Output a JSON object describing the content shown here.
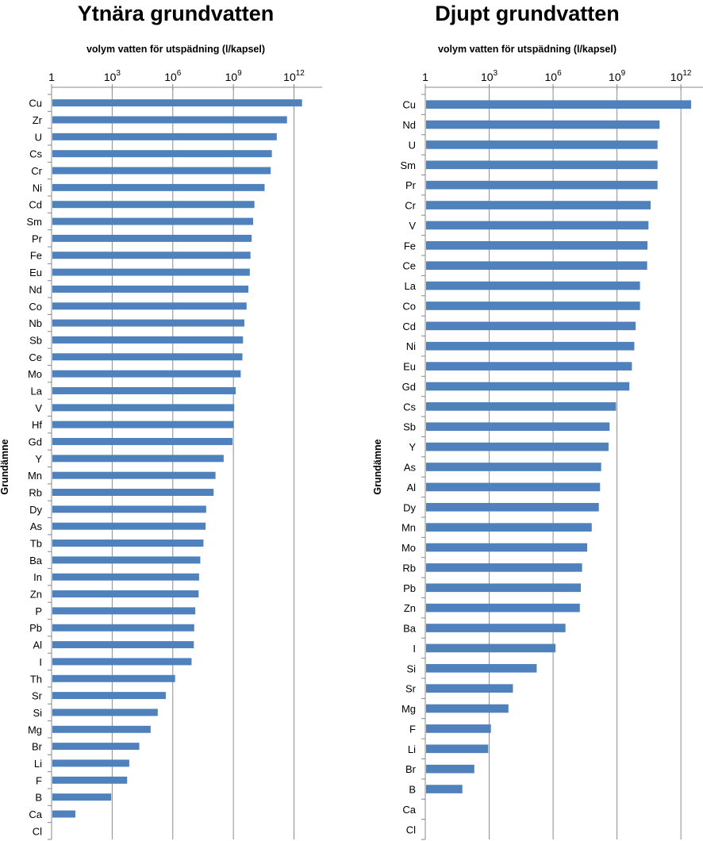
{
  "chart_data": [
    {
      "type": "bar",
      "orientation": "horizontal",
      "title": "Ytnära grundvatten",
      "xlabel": "volym vatten för utspädning (l/kapsel)",
      "ylabel": "Grundämne",
      "xscale": "log",
      "xlim": [
        1,
        10000000000000.0
      ],
      "xticks": [
        "1",
        "10^3",
        "10^6",
        "10^9",
        "10^12"
      ],
      "xaxis_position": "top",
      "grid": "vertical",
      "bar_color": "#4F81BD",
      "categories": [
        "Cu",
        "Zr",
        "U",
        "Cs",
        "Cr",
        "Ni",
        "Cd",
        "Sm",
        "Pr",
        "Fe",
        "Eu",
        "Nd",
        "Co",
        "Nb",
        "Sb",
        "Ce",
        "Mo",
        "La",
        "V",
        "Hf",
        "Gd",
        "Y",
        "Mn",
        "Rb",
        "Dy",
        "As",
        "Tb",
        "Ba",
        "In",
        "Zn",
        "P",
        "Pb",
        "Al",
        "I",
        "Th",
        "Sr",
        "Si",
        "Mg",
        "Br",
        "Li",
        "F",
        "B",
        "Ca",
        "Cl"
      ],
      "values": [
        2500000000000.0,
        450000000000.0,
        140000000000.0,
        80000000000.0,
        70000000000.0,
        35000000000.0,
        11000000000.0,
        9500000000.0,
        8000000000.0,
        7000000000.0,
        6500000000.0,
        5500000000.0,
        4500000000.0,
        3500000000.0,
        3000000000.0,
        2800000000.0,
        2300000000.0,
        1300000000.0,
        1100000000.0,
        1050000000.0,
        900000000.0,
        330000000.0,
        130000000.0,
        105000000.0,
        45000000.0,
        42000000.0,
        33000000.0,
        23000000.0,
        20000000.0,
        19000000.0,
        13000000.0,
        11500000.0,
        11000000.0,
        8500000.0,
        1300000.0,
        450000.0,
        180000.0,
        80000.0,
        22000.0,
        7000.0,
        5500.0,
        900,
        15,
        null
      ]
    },
    {
      "type": "bar",
      "orientation": "horizontal",
      "title": "Djupt grundvatten",
      "xlabel": "volym vatten för utspädning (l/kapsel)",
      "ylabel": "Grundämne",
      "xscale": "log",
      "xlim": [
        1,
        10000000000000.0
      ],
      "xticks": [
        "1",
        "10^3",
        "10^6",
        "10^9",
        "10^12"
      ],
      "xaxis_position": "top",
      "grid": "vertical",
      "bar_color": "#4F81BD",
      "categories": [
        "Cu",
        "Nd",
        "U",
        "Sm",
        "Pr",
        "Cr",
        "V",
        "Fe",
        "Ce",
        "La",
        "Co",
        "Cd",
        "Ni",
        "Eu",
        "Gd",
        "Cs",
        "Sb",
        "Y",
        "As",
        "Al",
        "Dy",
        "Mn",
        "Mo",
        "Rb",
        "Pb",
        "Zn",
        "Ba",
        "I",
        "Si",
        "Sr",
        "Mg",
        "F",
        "Li",
        "Br",
        "B",
        "Ca",
        "Cl"
      ],
      "values": [
        3000000000000.0,
        100000000000.0,
        80000000000.0,
        80000000000.0,
        80000000000.0,
        38000000000.0,
        30000000000.0,
        27000000000.0,
        26000000000.0,
        12000000000.0,
        12000000000.0,
        7500000000.0,
        6500000000.0,
        5000000000.0,
        3800000000.0,
        900000000.0,
        450000000.0,
        400000000.0,
        180000000.0,
        160000000.0,
        140000000.0,
        65000000.0,
        40000000.0,
        23000000.0,
        20000000.0,
        18000000.0,
        3800000.0,
        1300000.0,
        170000.0,
        13000.0,
        8000.0,
        1200.0,
        900,
        200,
        55,
        null,
        null
      ]
    }
  ]
}
